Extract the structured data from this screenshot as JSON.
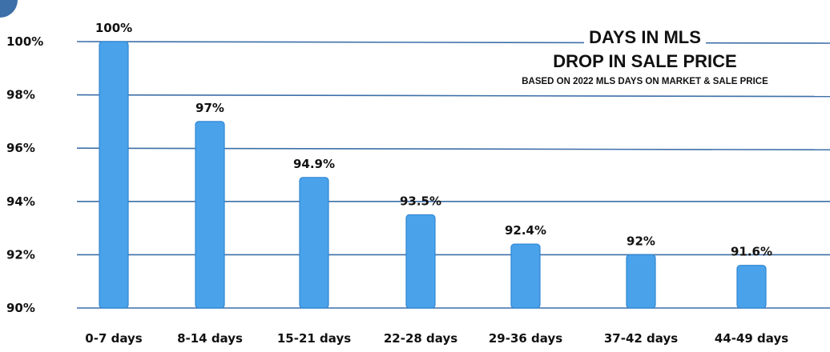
{
  "chart_data": {
    "type": "bar",
    "title": "DAYS IN MLS",
    "title_line2": "DROP IN SALE PRICE",
    "subtitle": "BASED ON 2022 MLS DAYS ON MARKET & SALE PRICE",
    "categories": [
      "0-7 days",
      "8-14 days",
      "15-21 days",
      "22-28 days",
      "29-36 days",
      "37-42 days",
      "44-49 days"
    ],
    "values": [
      100,
      97,
      94.9,
      93.5,
      92.4,
      92,
      91.6
    ],
    "data_labels": [
      "100%",
      "97%",
      "94.9%",
      "93.5%",
      "92.4%",
      "92%",
      "91.6%"
    ],
    "yticks": [
      "100%",
      "98%",
      "96%",
      "94%",
      "92%",
      "90%"
    ],
    "ylim": [
      90,
      100
    ],
    "grid": true,
    "legend": "none",
    "colors": {
      "bar": "#4aa3ea",
      "bar_stroke": "#2f86d3",
      "grid": "#3d6fa8",
      "corner": "#3d6fa8"
    }
  }
}
